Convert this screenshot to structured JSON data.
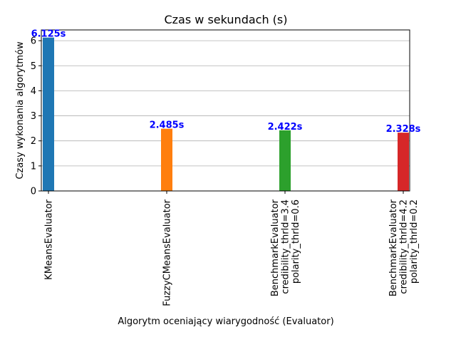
{
  "chart_data": {
    "type": "bar",
    "title": "Czas w sekundach (s)",
    "xlabel": "Algorytm oceniający wiarygodność (Evaluator)",
    "ylabel": "Czasy wykonania algorytmów",
    "ylim": [
      0,
      6.43
    ],
    "yticks": [
      "0",
      "1",
      "2",
      "3",
      "4",
      "5",
      "6"
    ],
    "grid": "y",
    "categories": [
      [
        "KMeansEvaluator"
      ],
      [
        "FuzzyCMeansEvaluator"
      ],
      [
        "BenchmarkEvaluator",
        "credibility_thrld=3.4",
        "polarity_thrld=0.6"
      ],
      [
        "BenchmarkEvaluator",
        "credibility_thrld=4.2",
        "polarity_thrld=0.2"
      ]
    ],
    "values": [
      6.125,
      2.485,
      2.422,
      2.328
    ],
    "data_labels": [
      "6.125s",
      "2.485s",
      "2.422s",
      "2.328s"
    ],
    "colors": [
      "#1f77b4",
      "#ff7f0e",
      "#2ca02c",
      "#d62728"
    ],
    "data_label_color": "#0000ff"
  }
}
